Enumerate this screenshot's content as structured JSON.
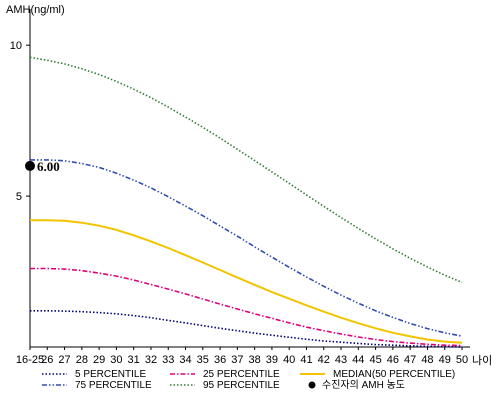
{
  "chart_data": {
    "type": "line",
    "ylabel": "AMH(ng/ml)",
    "xlabel": "나이",
    "x_ticks": [
      "16-25",
      "26",
      "27",
      "28",
      "29",
      "30",
      "31",
      "32",
      "33",
      "34",
      "35",
      "36",
      "37",
      "38",
      "39",
      "40",
      "41",
      "42",
      "43",
      "44",
      "45",
      "46",
      "47",
      "48",
      "49",
      "50"
    ],
    "y_ticks": [
      5,
      10
    ],
    "ylim": [
      0,
      11
    ],
    "grid": false,
    "series": [
      {
        "name": "5 PERCENTILE",
        "color": "#000080",
        "dash": "dotted",
        "values": [
          1.2,
          1.2,
          1.19,
          1.17,
          1.14,
          1.1,
          1.04,
          0.97,
          0.88,
          0.8,
          0.71,
          0.62,
          0.54,
          0.46,
          0.39,
          0.32,
          0.26,
          0.2,
          0.16,
          0.12,
          0.08,
          0.06,
          0.04,
          0.02,
          0.01,
          0.0
        ]
      },
      {
        "name": "25 PERCENTILE",
        "color": "#e0007a",
        "dash": "dashdot",
        "values": [
          2.6,
          2.6,
          2.58,
          2.53,
          2.45,
          2.35,
          2.22,
          2.07,
          1.92,
          1.76,
          1.59,
          1.42,
          1.26,
          1.1,
          0.95,
          0.8,
          0.66,
          0.54,
          0.43,
          0.33,
          0.25,
          0.18,
          0.13,
          0.09,
          0.06,
          0.05
        ]
      },
      {
        "name": "MEDIAN(50 PERCENTILE)",
        "color": "#f2c400",
        "dash": "solid",
        "values": [
          4.2,
          4.2,
          4.18,
          4.12,
          4.02,
          3.88,
          3.7,
          3.5,
          3.28,
          3.04,
          2.8,
          2.55,
          2.3,
          2.06,
          1.82,
          1.6,
          1.38,
          1.17,
          0.97,
          0.79,
          0.62,
          0.47,
          0.35,
          0.25,
          0.18,
          0.14
        ]
      },
      {
        "name": "75 PERCENTILE",
        "color": "#2f4fb0",
        "dash": "dashdotdot",
        "values": [
          6.2,
          6.2,
          6.17,
          6.08,
          5.95,
          5.76,
          5.53,
          5.27,
          4.98,
          4.67,
          4.35,
          4.01,
          3.67,
          3.32,
          2.98,
          2.64,
          2.32,
          2.01,
          1.72,
          1.45,
          1.2,
          0.98,
          0.78,
          0.61,
          0.47,
          0.36
        ]
      },
      {
        "name": "95 PERCENTILE",
        "color": "#2e7d32",
        "dash": "dotted",
        "values": [
          9.6,
          9.5,
          9.38,
          9.22,
          9.03,
          8.8,
          8.54,
          8.26,
          7.95,
          7.62,
          7.28,
          6.92,
          6.55,
          6.18,
          5.8,
          5.42,
          5.04,
          4.66,
          4.29,
          3.93,
          3.58,
          3.25,
          2.94,
          2.65,
          2.38,
          2.14
        ]
      }
    ],
    "marker": {
      "name": "수진자의 AMH 농도",
      "x": "16-25",
      "y": 6.0,
      "label": "6.00",
      "color": "#000000"
    },
    "legend_position": "bottom",
    "legend_order": [
      "5 PERCENTILE",
      "25 PERCENTILE",
      "MEDIAN(50 PERCENTILE)",
      "75 PERCENTILE",
      "95 PERCENTILE",
      "수진자의 AMH 농도"
    ]
  }
}
